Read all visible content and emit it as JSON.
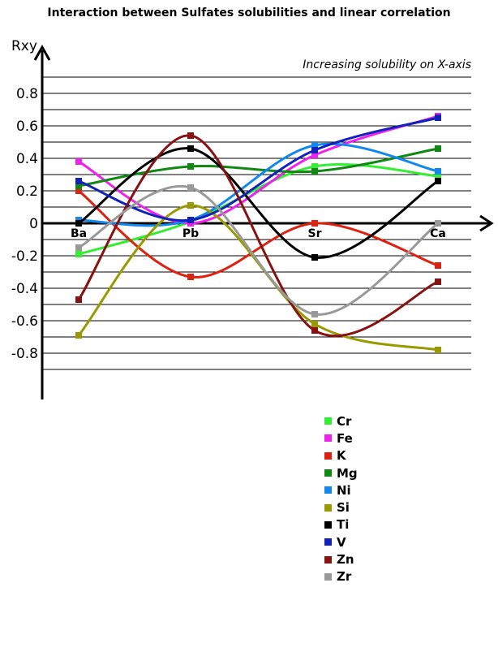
{
  "chart_data": {
    "type": "line",
    "title": "Interaction between Sulfates solubilities and linear correlation",
    "ylabel": "Rxy",
    "annotation": "Increasing solubility on X-axis",
    "categories": [
      "Ba",
      "Pb",
      "Sr",
      "Ca"
    ],
    "ylim": [
      -1.1,
      1.1
    ],
    "yticks": [
      0.8,
      0.6,
      0.4,
      0.2,
      0,
      -0.2,
      -0.4,
      -0.6,
      -0.8
    ],
    "ytick_labels": [
      "0.8",
      "0.6",
      "0.4",
      "0.2",
      "0",
      "-0.2",
      "-0.4",
      "-0.6",
      "-0.8"
    ],
    "grid": true,
    "legend_position": "bottom-right",
    "series": [
      {
        "name": "Cr",
        "color": "#33ee33",
        "values": [
          -0.19,
          0.01,
          0.35,
          0.29
        ]
      },
      {
        "name": "Fe",
        "color": "#ee22ee",
        "values": [
          0.38,
          0.0,
          0.42,
          0.66
        ]
      },
      {
        "name": "K",
        "color": "#dd2211",
        "values": [
          0.2,
          -0.33,
          0.0,
          -0.26
        ]
      },
      {
        "name": "Mg",
        "color": "#118811",
        "values": [
          0.23,
          0.35,
          0.32,
          0.46
        ]
      },
      {
        "name": "Ni",
        "color": "#1188ee",
        "values": [
          0.02,
          0.02,
          0.48,
          0.32
        ]
      },
      {
        "name": "Si",
        "color": "#999900",
        "values": [
          -0.69,
          0.11,
          -0.62,
          -0.78
        ]
      },
      {
        "name": "Ti",
        "color": "#000000",
        "values": [
          0.0,
          0.46,
          -0.21,
          0.26
        ]
      },
      {
        "name": "V",
        "color": "#1122bb",
        "values": [
          0.26,
          0.02,
          0.45,
          0.65
        ]
      },
      {
        "name": "Zn",
        "color": "#881111",
        "values": [
          -0.47,
          0.54,
          -0.66,
          -0.36
        ]
      },
      {
        "name": "Zr",
        "color": "#999999",
        "values": [
          -0.15,
          0.22,
          -0.56,
          0.0
        ]
      }
    ]
  }
}
